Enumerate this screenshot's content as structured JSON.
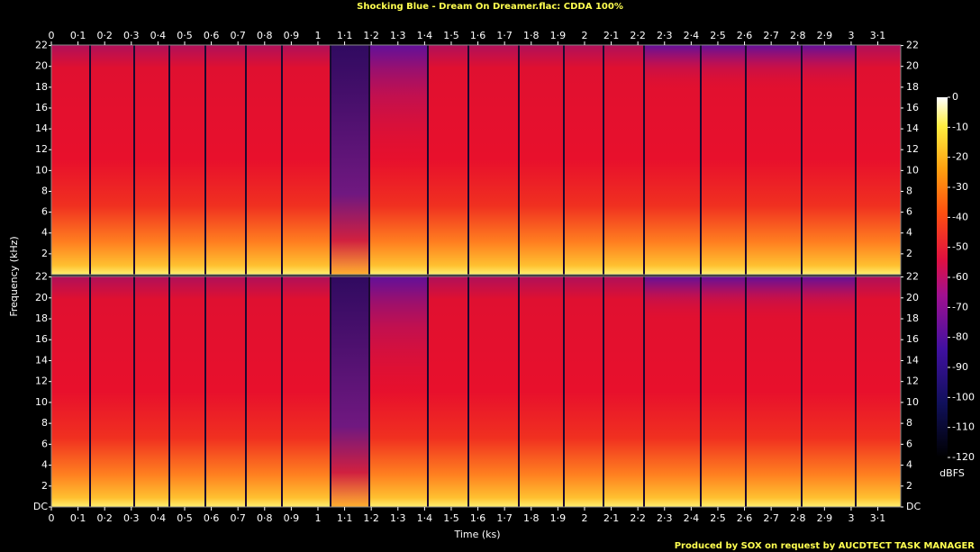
{
  "chart_data": {
    "type": "spectrogram",
    "title": "Shocking Blue - Dream On Dreamer.flac: CDDA 100%",
    "x_label": "Time (ks)",
    "y_label": "Frequency (kHz)",
    "colorbar_label": "dBFS",
    "footer": "Produced by SOX on request by AUCDTECT TASK MANAGER",
    "xlim": [
      0,
      3.186
    ],
    "xticks": [
      0,
      {
        "value": 0.1,
        "label": "0·1"
      },
      {
        "value": 0.2,
        "label": "0·2"
      },
      {
        "value": 0.3,
        "label": "0·3"
      },
      {
        "value": 0.4,
        "label": "0·4"
      },
      {
        "value": 0.5,
        "label": "0·5"
      },
      {
        "value": 0.6,
        "label": "0·6"
      },
      {
        "value": 0.7,
        "label": "0·7"
      },
      {
        "value": 0.8,
        "label": "0·8"
      },
      {
        "value": 0.9,
        "label": "0·9"
      },
      1,
      {
        "value": 1.1,
        "label": "1·1"
      },
      {
        "value": 1.2,
        "label": "1·2"
      },
      {
        "value": 1.3,
        "label": "1·3"
      },
      {
        "value": 1.4,
        "label": "1·4"
      },
      {
        "value": 1.5,
        "label": "1·5"
      },
      {
        "value": 1.6,
        "label": "1·6"
      },
      {
        "value": 1.7,
        "label": "1·7"
      },
      {
        "value": 1.8,
        "label": "1·8"
      },
      {
        "value": 1.9,
        "label": "1·9"
      },
      2,
      {
        "value": 2.1,
        "label": "2·1"
      },
      {
        "value": 2.2,
        "label": "2·2"
      },
      {
        "value": 2.3,
        "label": "2·3"
      },
      {
        "value": 2.4,
        "label": "2·4"
      },
      {
        "value": 2.5,
        "label": "2·5"
      },
      {
        "value": 2.6,
        "label": "2·6"
      },
      {
        "value": 2.7,
        "label": "2·7"
      },
      {
        "value": 2.8,
        "label": "2·8"
      },
      {
        "value": 2.9,
        "label": "2·9"
      },
      3,
      {
        "value": 3.1,
        "label": "3·1"
      }
    ],
    "panels": [
      {
        "ylim": [
          0,
          22.05
        ],
        "yticks": [
          2,
          4,
          6,
          8,
          10,
          12,
          14,
          16,
          18,
          20,
          22
        ]
      },
      {
        "ylim": [
          0,
          22.05
        ],
        "yticks": [
          {
            "value": 0,
            "label": "DC"
          },
          2,
          4,
          6,
          8,
          10,
          12,
          14,
          16,
          18,
          20,
          22
        ]
      }
    ],
    "clim": [
      -120,
      0
    ],
    "cticks": [
      0,
      -10,
      -20,
      -30,
      -40,
      -50,
      -60,
      -70,
      -80,
      -90,
      -100,
      -110,
      -120
    ]
  }
}
